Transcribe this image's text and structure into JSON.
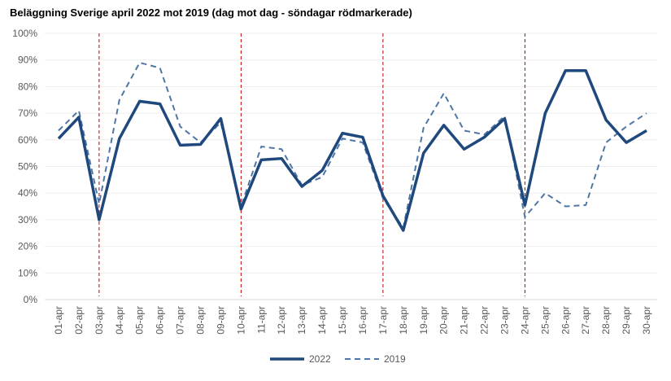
{
  "chart_data": {
    "type": "line",
    "title": "Beläggning Sverige april 2022 mot 2019 (dag mot dag - söndagar rödmarkerade)",
    "xlabel": "",
    "ylabel": "",
    "ylim": [
      0,
      100
    ],
    "yticks": [
      "0%",
      "10%",
      "20%",
      "30%",
      "40%",
      "50%",
      "60%",
      "70%",
      "80%",
      "90%",
      "100%"
    ],
    "categories": [
      "01-apr",
      "02-apr",
      "03-apr",
      "04-apr",
      "05-apr",
      "06-apr",
      "07-apr",
      "08-apr",
      "09-apr",
      "10-apr",
      "11-apr",
      "12-apr",
      "13-apr",
      "14-apr",
      "15-apr",
      "16-apr",
      "17-apr",
      "18-apr",
      "19-apr",
      "20-apr",
      "21-apr",
      "22-apr",
      "23-apr",
      "24-apr",
      "25-apr",
      "26-apr",
      "27-apr",
      "28-apr",
      "29-apr",
      "30-apr"
    ],
    "series": [
      {
        "name": "2022",
        "style": "solid",
        "color": "#1f497d",
        "values": [
          60.5,
          68.5,
          30,
          60.5,
          74.5,
          73.5,
          58,
          58.3,
          68,
          34,
          52.5,
          53,
          42.5,
          48.5,
          62.5,
          61,
          39,
          26,
          55,
          65.5,
          56.5,
          61,
          68,
          35.5,
          70,
          86,
          86,
          67.5,
          59,
          63.5
        ]
      },
      {
        "name": "2019",
        "style": "dashed",
        "color": "#4f76a5",
        "values": [
          63.5,
          71,
          36,
          75,
          89,
          87,
          65,
          59,
          66.5,
          35,
          57.5,
          56.5,
          43,
          46,
          60.5,
          59,
          38,
          27,
          64.5,
          77.5,
          63.5,
          62,
          69,
          31,
          40,
          35,
          35.5,
          59,
          65,
          70
        ]
      }
    ],
    "sunday_markers": [
      "03-apr",
      "10-apr",
      "17-apr",
      "24-apr"
    ],
    "marker_color": "#c00000",
    "grid": true,
    "legend": "bottom"
  }
}
